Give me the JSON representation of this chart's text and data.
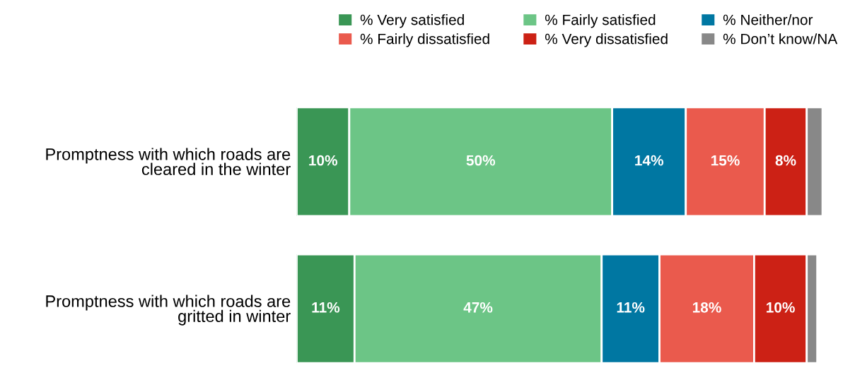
{
  "chart_data": {
    "type": "bar",
    "orientation": "horizontal",
    "stacked": true,
    "categories": [
      "Promptness with which roads are\ncleared in the winter",
      "Promptness with which roads are\ngritted in winter"
    ],
    "series": [
      {
        "name": "% Very satisfied",
        "color": "#3a9655",
        "values": [
          10,
          11
        ],
        "value_labels": [
          "10%",
          "11%"
        ]
      },
      {
        "name": "% Fairly satisfied",
        "color": "#6cc586",
        "values": [
          50,
          47
        ],
        "value_labels": [
          "50%",
          "47%"
        ]
      },
      {
        "name": "% Neither/nor",
        "color": "#0077a2",
        "values": [
          14,
          11
        ],
        "value_labels": [
          "14%",
          "11%"
        ]
      },
      {
        "name": "% Fairly dissatisfied",
        "color": "#ea5a4d",
        "values": [
          15,
          18
        ],
        "value_labels": [
          "15%",
          "18%"
        ]
      },
      {
        "name": "% Very dissatisfied",
        "color": "#cc2115",
        "values": [
          8,
          10
        ],
        "value_labels": [
          "8%",
          "10%"
        ]
      },
      {
        "name": "% Don’t know/NA",
        "color": "#888888",
        "values": [
          3,
          2
        ],
        "value_labels": [
          null,
          null
        ]
      }
    ],
    "xlim": [
      0,
      100
    ],
    "tick_labels": "y",
    "legend": "top right",
    "grid": false
  }
}
